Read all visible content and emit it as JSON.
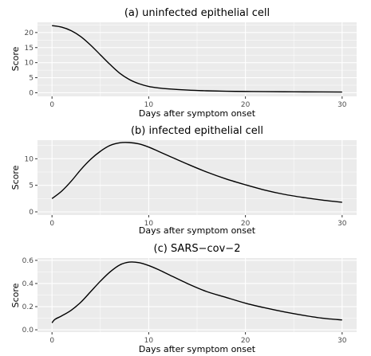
{
  "chart_data": [
    {
      "type": "line",
      "title": "(a) uninfected epithelial cell",
      "xlabel": "Days after symptom onset",
      "ylabel": "Score",
      "xlim": [
        -1.5,
        31.5
      ],
      "ylim": [
        -1.2,
        23.4
      ],
      "xticks": [
        0,
        10,
        20,
        30
      ],
      "yticks": [
        0,
        5,
        10,
        15,
        20
      ],
      "grid": true,
      "series": [
        {
          "x": [
            0,
            1,
            2,
            3,
            4,
            5,
            6,
            7,
            8,
            9,
            10,
            11,
            12,
            14,
            16,
            18,
            20,
            22,
            25,
            28,
            30
          ],
          "y": [
            22.3,
            21.8,
            20.6,
            18.6,
            15.8,
            12.6,
            9.4,
            6.5,
            4.4,
            3.0,
            2.1,
            1.6,
            1.3,
            0.9,
            0.65,
            0.5,
            0.42,
            0.36,
            0.3,
            0.27,
            0.25
          ]
        }
      ]
    },
    {
      "type": "line",
      "title": "(b) infected epithelial cell",
      "xlabel": "Days after symptom onset",
      "ylabel": "Score",
      "xlim": [
        -1.5,
        31.5
      ],
      "ylim": [
        -0.6,
        13.5
      ],
      "xticks": [
        0,
        10,
        20,
        30
      ],
      "yticks": [
        0,
        5,
        10
      ],
      "grid": true,
      "series": [
        {
          "x": [
            0,
            1,
            2,
            3,
            4,
            5,
            6,
            7,
            8,
            9,
            10,
            11,
            12,
            14,
            16,
            18,
            20,
            22,
            24,
            26,
            28,
            30
          ],
          "y": [
            2.5,
            3.9,
            5.8,
            8.0,
            9.9,
            11.4,
            12.5,
            13.0,
            13.05,
            12.8,
            12.2,
            11.4,
            10.6,
            9.0,
            7.5,
            6.2,
            5.1,
            4.1,
            3.3,
            2.7,
            2.2,
            1.8
          ]
        }
      ]
    },
    {
      "type": "line",
      "title": "(c) SARS−cov−2",
      "xlabel": "Days after symptom onset",
      "ylabel": "Score",
      "xlim": [
        -1.5,
        31.5
      ],
      "ylim": [
        -0.02,
        0.62
      ],
      "xticks": [
        0,
        10,
        20,
        30
      ],
      "yticks": [
        0.0,
        0.2,
        0.4,
        0.6
      ],
      "ytick_labels": [
        "0.0",
        "0.2",
        "0.4",
        "0.6"
      ],
      "grid": true,
      "series": [
        {
          "x": [
            0,
            0.3,
            1,
            2,
            3,
            4,
            5,
            6,
            7,
            8,
            9,
            10,
            11,
            12,
            14,
            16,
            18,
            20,
            22,
            24,
            26,
            28,
            30
          ],
          "y": [
            0.06,
            0.09,
            0.12,
            0.17,
            0.24,
            0.33,
            0.42,
            0.5,
            0.56,
            0.585,
            0.58,
            0.555,
            0.52,
            0.48,
            0.4,
            0.33,
            0.28,
            0.23,
            0.19,
            0.155,
            0.125,
            0.1,
            0.085
          ]
        }
      ]
    }
  ]
}
